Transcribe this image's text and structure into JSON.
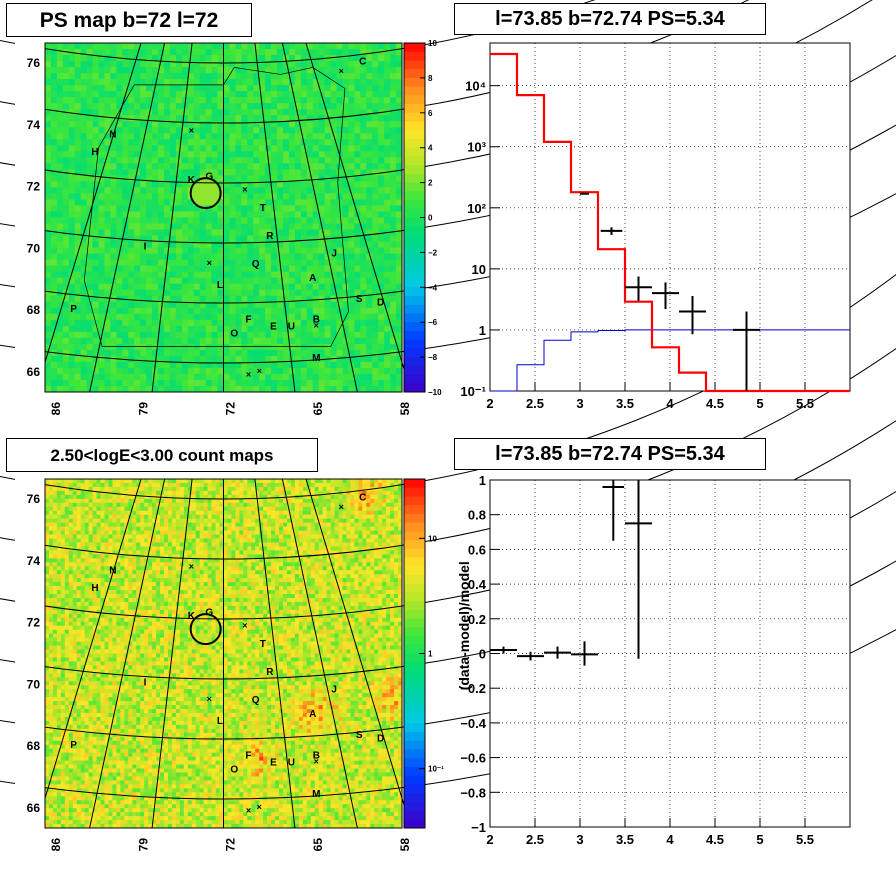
{
  "titles": {
    "map_top": "PS map b=72 l=72",
    "spec_top": "l=73.85 b=72.74 PS=5.34",
    "map_bottom": "2.50<logE<3.00 count maps",
    "spec_bottom": "l=73.85 b=72.74 PS=5.34"
  },
  "colors": {
    "data": "#000000",
    "model_total": "#ff0000",
    "model_bkg": "#0000cc",
    "map_top_base": "#22dd44",
    "map_bottom_base": "#e8e040"
  },
  "maps": {
    "yticks": [
      "76",
      "74",
      "72",
      "70",
      "68",
      "66"
    ],
    "xticks": [
      "86",
      "79",
      "72",
      "65",
      "58"
    ],
    "labels": [
      "C",
      "N",
      "H",
      "K",
      "G",
      "T",
      "R",
      "I",
      "J",
      "Q",
      "A",
      "L",
      "S",
      "D",
      "P",
      "F",
      "E",
      "U",
      "B",
      "O",
      "M"
    ],
    "top_colorbar_ticks": [
      "10",
      "8",
      "6",
      "4",
      "2",
      "0",
      "−2",
      "−4",
      "−6",
      "−8",
      "−10"
    ],
    "bottom_colorbar_ticks": [
      "10",
      "1",
      "10⁻¹"
    ]
  },
  "chart_data": [
    {
      "type": "line",
      "title": "l=73.85 b=72.74 PS=5.34",
      "log_y": true,
      "xlim": [
        2,
        6
      ],
      "ylim": [
        0.1,
        50000
      ],
      "xticks": [
        "2",
        "2.5",
        "3",
        "3.5",
        "4",
        "4.5",
        "5",
        "5.5"
      ],
      "yticks": [
        "10⁻¹",
        "1",
        "10",
        "10²",
        "10³",
        "10⁴"
      ],
      "grid": true,
      "model_total": {
        "bin_edges": [
          2.0,
          2.3,
          2.6,
          2.9,
          3.2,
          3.5,
          3.8,
          4.1,
          4.4,
          4.7,
          5.0,
          5.3,
          5.6,
          6.0
        ],
        "values": [
          33000,
          7000,
          1200,
          180,
          21,
          2.9,
          0.52,
          0.2,
          0.1,
          0.1,
          0.1,
          0.1,
          0.1
        ]
      },
      "model_bkg": {
        "bin_edges": [
          2.0,
          2.3,
          2.6,
          2.9,
          3.2,
          3.5,
          3.8,
          4.1,
          4.4,
          4.7,
          5.0,
          5.3,
          5.6,
          6.0
        ],
        "values": [
          0.05,
          0.27,
          0.68,
          0.93,
          0.98,
          1.0,
          1.0,
          1.0,
          1.0,
          1.0,
          1.0,
          1.0,
          1.0
        ]
      },
      "data_points": [
        {
          "x": 3.05,
          "y": 170,
          "xerr": 0.05,
          "ylo": 170,
          "yhi": 170
        },
        {
          "x": 3.35,
          "y": 42,
          "xerr": 0.12,
          "ylo": 36,
          "yhi": 48
        },
        {
          "x": 3.65,
          "y": 5.0,
          "xerr": 0.15,
          "ylo": 3.0,
          "yhi": 7.5
        },
        {
          "x": 3.95,
          "y": 4.0,
          "xerr": 0.15,
          "ylo": 2.2,
          "yhi": 6.0
        },
        {
          "x": 4.25,
          "y": 2.0,
          "xerr": 0.15,
          "ylo": 0.85,
          "yhi": 3.6
        },
        {
          "x": 4.85,
          "y": 1.0,
          "xerr": 0.15,
          "ylo": 0.1,
          "yhi": 2.0
        }
      ]
    },
    {
      "type": "scatter",
      "title": "l=73.85 b=72.74 PS=5.34",
      "ylabel": "(data-model)/model",
      "xlim": [
        2,
        6
      ],
      "ylim": [
        -1,
        1
      ],
      "xticks": [
        "2",
        "2.5",
        "3",
        "3.5",
        "4",
        "4.5",
        "5",
        "5.5"
      ],
      "yticks": [
        "−1",
        "−0.8",
        "−0.6",
        "−0.4",
        "−0.2",
        "0",
        "0.2",
        "0.4",
        "0.6",
        "0.8",
        "1"
      ],
      "grid": true,
      "data_points": [
        {
          "x": 2.15,
          "y": 0.02,
          "xerr": 0.15,
          "ylo": 0.0,
          "yhi": 0.04
        },
        {
          "x": 2.45,
          "y": -0.015,
          "xerr": 0.15,
          "ylo": -0.04,
          "yhi": 0.01
        },
        {
          "x": 2.75,
          "y": 0.005,
          "xerr": 0.15,
          "ylo": -0.03,
          "yhi": 0.04
        },
        {
          "x": 3.05,
          "y": -0.005,
          "xerr": 0.15,
          "ylo": -0.07,
          "yhi": 0.07
        },
        {
          "x": 3.37,
          "y": 0.96,
          "xerr": 0.12,
          "ylo": 0.65,
          "yhi": 1.0
        },
        {
          "x": 3.65,
          "y": 0.75,
          "xerr": 0.15,
          "ylo": -0.03,
          "yhi": 1.0
        }
      ]
    }
  ]
}
